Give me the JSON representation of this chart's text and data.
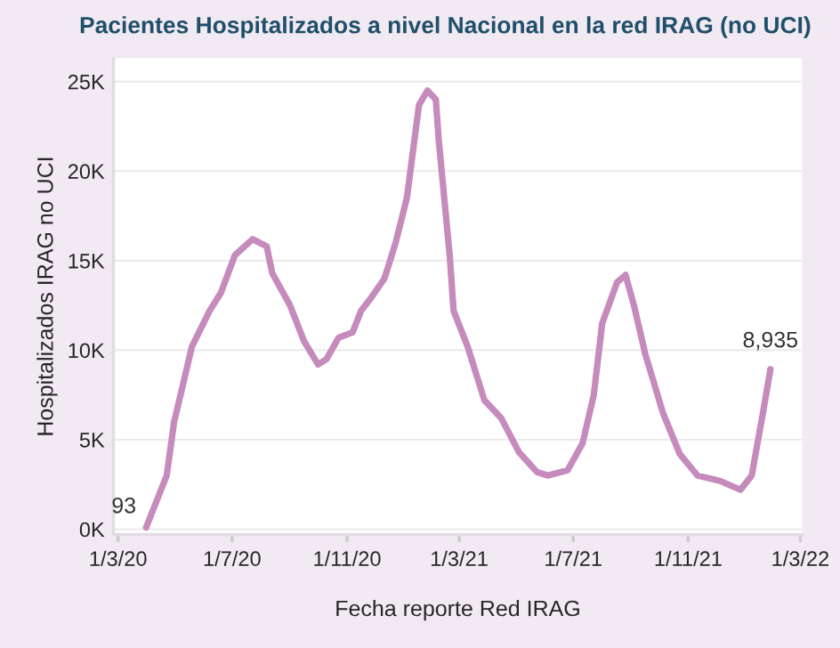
{
  "chart_data": {
    "type": "line",
    "title": "Pacientes Hospitalizados a nivel Nacional en la red IRAG (no UCI)",
    "xlabel": "Fecha reporte Red IRAG",
    "ylabel": "Hospitalizados IRAG no UCI",
    "x": [
      "2020-03-31",
      "2020-04-22",
      "2020-04-30",
      "2020-05-10",
      "2020-05-19",
      "2020-06-07",
      "2020-06-19",
      "2020-07-04",
      "2020-07-23",
      "2020-08-07",
      "2020-08-13",
      "2020-09-01",
      "2020-09-16",
      "2020-10-01",
      "2020-10-10",
      "2020-10-23",
      "2020-11-07",
      "2020-11-16",
      "2020-11-25",
      "2020-12-11",
      "2020-12-23",
      "2021-01-04",
      "2021-01-17",
      "2021-01-26",
      "2021-02-04",
      "2021-02-07",
      "2021-02-19",
      "2021-02-23",
      "2021-03-10",
      "2021-03-28",
      "2021-04-15",
      "2021-05-04",
      "2021-05-23",
      "2021-06-04",
      "2021-06-25",
      "2021-07-11",
      "2021-07-23",
      "2021-08-01",
      "2021-08-17",
      "2021-08-26",
      "2021-09-04",
      "2021-09-16",
      "2021-10-05",
      "2021-10-23",
      "2021-11-11",
      "2021-12-05",
      "2021-12-27",
      "2022-01-08",
      "2022-01-20",
      "2022-01-28"
    ],
    "series": [
      {
        "color": "#c68bbd",
        "values": [
          93,
          3000,
          6000,
          8200,
          10200,
          12200,
          13200,
          15300,
          16200,
          15800,
          14300,
          12500,
          10500,
          9200,
          9500,
          10700,
          11000,
          12200,
          12800,
          14000,
          16000,
          18500,
          23700,
          24500,
          24000,
          21800,
          15200,
          12200,
          10200,
          7200,
          6200,
          4300,
          3200,
          3000,
          3300,
          4800,
          7500,
          11500,
          13800,
          14200,
          12500,
          9800,
          6500,
          4200,
          3000,
          2700,
          2200,
          3000,
          6500,
          8935
        ],
        "value_labels": [
          "93",
          null,
          null,
          null,
          null,
          null,
          null,
          null,
          null,
          null,
          null,
          null,
          null,
          null,
          null,
          null,
          null,
          null,
          null,
          null,
          null,
          null,
          null,
          null,
          null,
          null,
          null,
          null,
          null,
          null,
          null,
          null,
          null,
          null,
          null,
          null,
          null,
          null,
          null,
          null,
          null,
          null,
          null,
          null,
          null,
          null,
          null,
          null,
          null,
          "8,935"
        ]
      }
    ],
    "xlim": [
      "2020-02-25",
      "2022-03-03"
    ],
    "xticks": [
      {
        "value": "2020-03-01",
        "label": "1/3/20"
      },
      {
        "value": "2020-07-01",
        "label": "1/7/20"
      },
      {
        "value": "2020-11-01",
        "label": "1/11/20"
      },
      {
        "value": "2021-03-01",
        "label": "1/3/21"
      },
      {
        "value": "2021-07-01",
        "label": "1/7/21"
      },
      {
        "value": "2021-11-01",
        "label": "1/11/21"
      },
      {
        "value": "2022-03-01",
        "label": "1/3/22"
      }
    ],
    "ylim": [
      -300,
      26300
    ],
    "yticks": [
      {
        "value": 0,
        "label": "0K"
      },
      {
        "value": 5000,
        "label": "5K"
      },
      {
        "value": 10000,
        "label": "10K"
      },
      {
        "value": 15000,
        "label": "15K"
      },
      {
        "value": 20000,
        "label": "20K"
      },
      {
        "value": 25000,
        "label": "25K"
      }
    ],
    "grid": "y",
    "legend": false,
    "marker": "none",
    "line_style": "solid"
  }
}
